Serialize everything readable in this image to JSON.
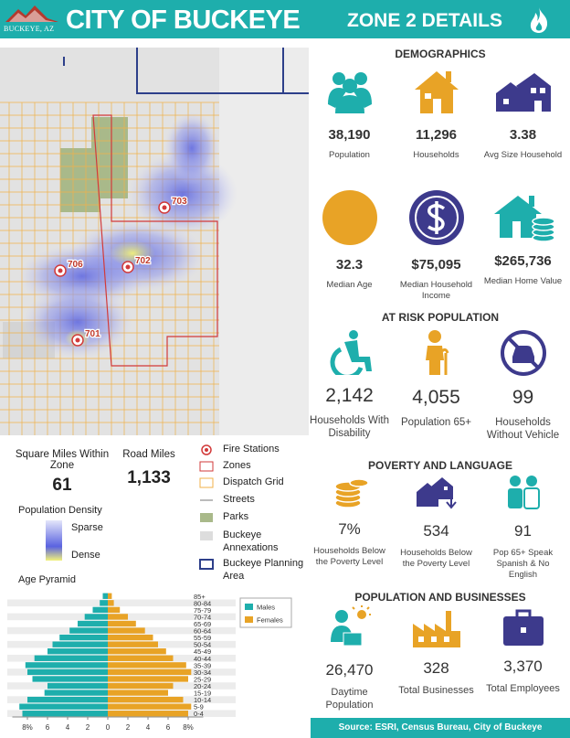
{
  "header": {
    "logo": "BUCKEYE, AZ",
    "title": "CITY OF BUCKEYE",
    "subtitle": "ZONE 2 DETAILS"
  },
  "map": {
    "stations": [
      "703",
      "702",
      "706",
      "701"
    ]
  },
  "zone_stats": [
    {
      "label": "Square Miles Within Zone",
      "value": "61"
    },
    {
      "label": "Road Miles",
      "value": "1,133"
    }
  ],
  "density_legend": {
    "title": "Population Density",
    "low": "Sparse",
    "high": "Dense"
  },
  "map_legend": [
    "Fire Stations",
    "Zones",
    "Dispatch Grid",
    "Streets",
    "Parks",
    "Buckeye Annexations",
    "Buckeye Planning Area"
  ],
  "age_pyramid": {
    "title": "Age Pyramid",
    "categories": [
      "0-4",
      "5-9",
      "10-14",
      "15-19",
      "20-24",
      "25-29",
      "30-34",
      "35-39",
      "40-44",
      "45-49",
      "50-54",
      "55-59",
      "60-64",
      "65-69",
      "70-74",
      "75-79",
      "80-84",
      "85+"
    ],
    "series": [
      {
        "name": "Males",
        "color": "#1eaeac",
        "values": [
          8.5,
          8.8,
          8.0,
          6.3,
          6.0,
          7.5,
          8.0,
          8.2,
          7.3,
          6.0,
          5.5,
          4.8,
          3.8,
          3.0,
          2.3,
          1.5,
          0.8,
          0.5
        ]
      },
      {
        "name": "Females",
        "color": "#e8a326",
        "values": [
          8.0,
          8.3,
          7.5,
          6.0,
          6.5,
          8.0,
          8.3,
          7.8,
          6.5,
          5.8,
          5.0,
          4.5,
          3.7,
          2.8,
          2.0,
          1.2,
          0.6,
          0.4
        ]
      }
    ],
    "xlim": [
      -9.5,
      9.5
    ],
    "xticks": [
      {
        "value": -8,
        "label": "8%"
      },
      {
        "value": -6,
        "label": "6"
      },
      {
        "value": -4,
        "label": "4"
      },
      {
        "value": -2,
        "label": "2"
      },
      0,
      2,
      4,
      6,
      {
        "value": 8,
        "label": "8%"
      }
    ]
  },
  "sections": [
    {
      "title": "DEMOGRAPHICS",
      "items": [
        {
          "value": "38,190",
          "label": "Population"
        },
        {
          "value": "11,296",
          "label": "Households"
        },
        {
          "value": "3.38",
          "label": "Avg Size Household"
        },
        {
          "value": "32.3",
          "label": "Median Age"
        },
        {
          "value": "$75,095",
          "label": "Median Household Income"
        },
        {
          "value": "$265,736",
          "label": "Median Home Value"
        }
      ]
    },
    {
      "title": "AT RISK POPULATION",
      "items": [
        {
          "value": "2,142",
          "label": "Households With Disability"
        },
        {
          "value": "4,055",
          "label": "Population 65+"
        },
        {
          "value": "99",
          "label": "Households Without Vehicle"
        }
      ]
    },
    {
      "title": "POVERTY AND LANGUAGE",
      "items": [
        {
          "value": "7%",
          "label": "Households Below the Poverty Level"
        },
        {
          "value": "534",
          "label": "Households Below the Poverty Level"
        },
        {
          "value": "91",
          "label": "Pop 65+ Speak Spanish & No English"
        }
      ]
    },
    {
      "title": "POPULATION AND BUSINESSES",
      "items": [
        {
          "value": "26,470",
          "label": "Daytime Population"
        },
        {
          "value": "328",
          "label": "Total Businesses"
        },
        {
          "value": "3,370",
          "label": "Total Employees"
        }
      ]
    }
  ],
  "source": "Source: ESRI, Census Bureau, City of Buckeye"
}
